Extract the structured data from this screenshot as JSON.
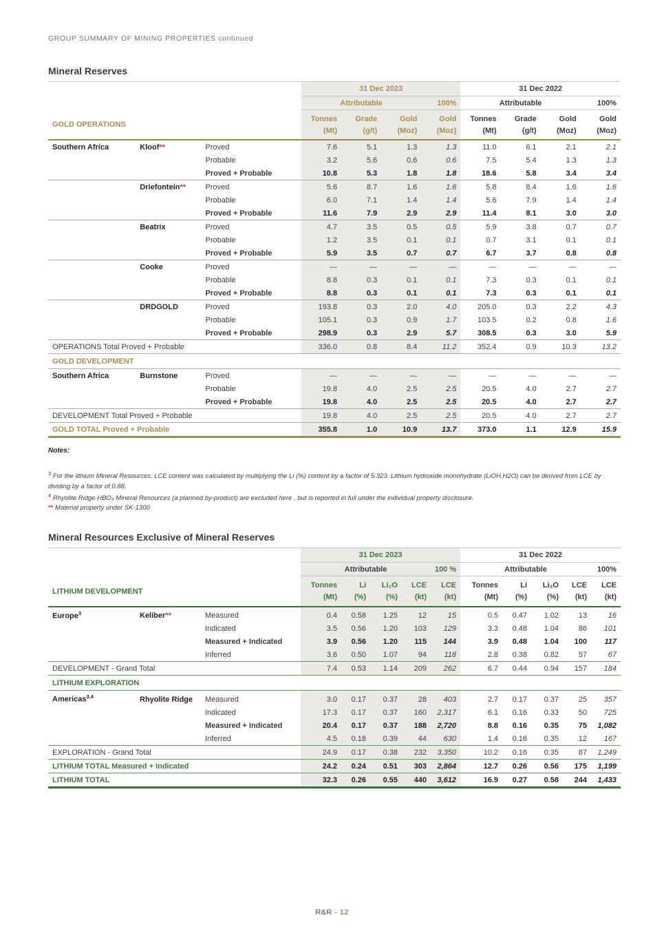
{
  "page": {
    "top_header": "GROUP SUMMARY OF MINING PROPERTIES continued",
    "footer_prefix": "R&R -",
    "footer_page": "12"
  },
  "colors": {
    "gold": "#a6904e",
    "green": "#41773d",
    "red": "#c23b34"
  },
  "reserves": {
    "title": "Mineral Reserves",
    "group_label": "GOLD OPERATIONS",
    "period_2023": "31 Dec 2023",
    "period_2022": "31 Dec 2022",
    "attr_2023": "Attributable",
    "attr_2022": "Attributable",
    "pct_2023": "100%",
    "pct_2022": "100%",
    "cols": [
      {
        "a": "Tonnes",
        "b": "(Mt)"
      },
      {
        "a": "Grade",
        "b": "(g/t)"
      },
      {
        "a": "Gold",
        "b": "(Moz)"
      },
      {
        "a": "Gold",
        "b": "(Moz)"
      },
      {
        "a": "Tonnes",
        "b": "(Mt)"
      },
      {
        "a": "Grade",
        "b": "(g/t)"
      },
      {
        "a": "Gold",
        "b": "(Moz)"
      },
      {
        "a": "Gold",
        "b": "(Moz)"
      }
    ],
    "rows": [
      {
        "t": "d",
        "region": "Southern Africa",
        "prop": "Kloof",
        "mark": "**",
        "cat": "Proved",
        "v": [
          "7.6",
          "5.1",
          "1.3",
          "1.3",
          "11.0",
          "6.1",
          "2.1",
          "2.1"
        ]
      },
      {
        "t": "d",
        "cat": "Probable",
        "v": [
          "3.2",
          "5.6",
          "0.6",
          "0.6",
          "7.5",
          "5.4",
          "1.3",
          "1.3"
        ]
      },
      {
        "t": "s",
        "cat": "Proved + Probable",
        "v": [
          "10.8",
          "5.3",
          "1.8",
          "1.8",
          "18.6",
          "5.8",
          "3.4",
          "3.4"
        ]
      },
      {
        "t": "d",
        "prop": "Driefontein",
        "mark": "**",
        "cat": "Proved",
        "sep": true,
        "v": [
          "5.6",
          "8.7",
          "1.6",
          "1.6",
          "5.8",
          "8.4",
          "1.6",
          "1.6"
        ]
      },
      {
        "t": "d",
        "cat": "Probable",
        "v": [
          "6.0",
          "7.1",
          "1.4",
          "1.4",
          "5.6",
          "7.9",
          "1.4",
          "1.4"
        ]
      },
      {
        "t": "s",
        "cat": "Proved + Probable",
        "v": [
          "11.6",
          "7.9",
          "2.9",
          "2.9",
          "11.4",
          "8.1",
          "3.0",
          "3.0"
        ]
      },
      {
        "t": "d",
        "prop": "Beatrix",
        "cat": "Proved",
        "sep": true,
        "v": [
          "4.7",
          "3.5",
          "0.5",
          "0.5",
          "5.9",
          "3.8",
          "0.7",
          "0.7"
        ]
      },
      {
        "t": "d",
        "cat": "Probable",
        "v": [
          "1.2",
          "3.5",
          "0.1",
          "0.1",
          "0.7",
          "3.1",
          "0.1",
          "0.1"
        ]
      },
      {
        "t": "s",
        "cat": "Proved + Probable",
        "v": [
          "5.9",
          "3.5",
          "0.7",
          "0.7",
          "6.7",
          "3.7",
          "0.8",
          "0.8"
        ]
      },
      {
        "t": "d",
        "prop": "Cooke",
        "cat": "Proved",
        "sep": true,
        "v": [
          "—",
          "—",
          "—",
          "—",
          "—",
          "—",
          "—",
          "—"
        ]
      },
      {
        "t": "d",
        "cat": "Probable",
        "v": [
          "8.8",
          "0.3",
          "0.1",
          "0.1",
          "7.3",
          "0.3",
          "0.1",
          "0.1"
        ]
      },
      {
        "t": "s",
        "cat": "Proved + Probable",
        "v": [
          "8.8",
          "0.3",
          "0.1",
          "0.1",
          "7.3",
          "0.3",
          "0.1",
          "0.1"
        ]
      },
      {
        "t": "d",
        "prop": "DRDGOLD",
        "cat": "Proved",
        "sep": true,
        "v": [
          "193.8",
          "0.3",
          "2.0",
          "4.0",
          "205.0",
          "0.3",
          "2.2",
          "4.3"
        ]
      },
      {
        "t": "d",
        "cat": "Probable",
        "v": [
          "105.1",
          "0.3",
          "0.9",
          "1.7",
          "103.5",
          "0.2",
          "0.8",
          "1.6"
        ]
      },
      {
        "t": "s",
        "cat": "Proved + Probable",
        "v": [
          "298.9",
          "0.3",
          "2.9",
          "5.7",
          "308.5",
          "0.3",
          "3.0",
          "5.9"
        ]
      },
      {
        "t": "total",
        "label": "OPERATIONS Total Proved + Probable",
        "sep": true,
        "v": [
          "336.0",
          "0.8",
          "8.4",
          "11.2",
          "352.4",
          "0.9",
          "10.3",
          "13.2"
        ]
      },
      {
        "t": "section",
        "label": "GOLD DEVELOPMENT"
      },
      {
        "t": "d",
        "region": "Southern Africa",
        "prop": "Burnstone",
        "cat": "Proved",
        "v": [
          "—",
          "—",
          "—",
          "—",
          "—",
          "—",
          "—",
          "—"
        ]
      },
      {
        "t": "d",
        "cat": "Probable",
        "v": [
          "19.8",
          "4.0",
          "2.5",
          "2.5",
          "20.5",
          "4.0",
          "2.7",
          "2.7"
        ]
      },
      {
        "t": "s",
        "cat": "Proved + Probable",
        "v": [
          "19.8",
          "4.0",
          "2.5",
          "2.5",
          "20.5",
          "4.0",
          "2.7",
          "2.7"
        ]
      },
      {
        "t": "total",
        "label": "DEVELOPMENT Total Proved + Probable",
        "sep": true,
        "v": [
          "19.8",
          "4.0",
          "2.5",
          "2.5",
          "20.5",
          "4.0",
          "2.7",
          "2.7"
        ]
      },
      {
        "t": "grand",
        "label": "GOLD TOTAL  Proved + Probable",
        "v": [
          "355.8",
          "1.0",
          "10.9",
          "13.7",
          "373.0",
          "1.1",
          "12.9",
          "15.9"
        ]
      }
    ]
  },
  "notes": {
    "title": "Notes:",
    "items": [
      {
        "sup": "3",
        "text": "For the lithium Mineral Resources, LCE content was calculated by multiplying the Li (%) content by a factor of 5.323. Lithium hydroxide monohydrate (LiOH.H2O) can be derived from LCE by dividing by a factor of 0.88."
      },
      {
        "sup": "4",
        "text": "Rhyolite Ridge HBO₃ Mineral Resources (a planned by-product) are excluded here , but is  reported in full under the individual property disclosure."
      },
      {
        "mark": "**",
        "text": "Material property under SK-1300"
      }
    ]
  },
  "resources": {
    "title": "Mineral Resources Exclusive of Mineral Reserves",
    "group_label": "LITHIUM DEVELOPMENT",
    "period_2023": "31 Dec 2023",
    "period_2022": "31 Dec 2022",
    "attr_2023": "Attributable",
    "attr_2022": "Attributable",
    "pct_2023": "100 %",
    "pct_2022": "100%",
    "cols": [
      {
        "a": "Tonnes",
        "b": "(Mt)"
      },
      {
        "a": "Li",
        "b": "(%)"
      },
      {
        "a": "Li₂O",
        "b": "(%)"
      },
      {
        "a": "LCE",
        "b": "(kt)"
      },
      {
        "a": "LCE",
        "b": "(kt)"
      },
      {
        "a": "Tonnes",
        "b": "(Mt)"
      },
      {
        "a": "Li",
        "b": "(%)"
      },
      {
        "a": "Li₂O",
        "b": "(%)"
      },
      {
        "a": "LCE",
        "b": "(kt)"
      },
      {
        "a": "LCE",
        "b": "(kt)"
      }
    ],
    "rows": [
      {
        "t": "d",
        "region": "Europe",
        "region_sup": "3",
        "prop": "Keliber",
        "mark": "**",
        "cat": "Measured",
        "v": [
          "0.4",
          "0.58",
          "1.25",
          "12",
          "15",
          "0.5",
          "0.47",
          "1.02",
          "13",
          "16"
        ]
      },
      {
        "t": "d",
        "cat": "Indicated",
        "v": [
          "3.5",
          "0.56",
          "1.20",
          "103",
          "129",
          "3.3",
          "0.48",
          "1.04",
          "86",
          "101"
        ]
      },
      {
        "t": "s",
        "cat": "Measured + Indicated",
        "v": [
          "3.9",
          "0.56",
          "1.20",
          "115",
          "144",
          "3.9",
          "0.48",
          "1.04",
          "100",
          "117"
        ]
      },
      {
        "t": "d",
        "cat": "Inferred",
        "v": [
          "3.6",
          "0.50",
          "1.07",
          "94",
          "118",
          "2.8",
          "0.38",
          "0.82",
          "57",
          "67"
        ]
      },
      {
        "t": "total",
        "label": "DEVELOPMENT - Grand Total",
        "sep": true,
        "v": [
          "7.4",
          "0.53",
          "1.14",
          "209",
          "262",
          "6.7",
          "0.44",
          "0.94",
          "157",
          "184"
        ]
      },
      {
        "t": "section",
        "label": "LITHIUM EXPLORATION"
      },
      {
        "t": "d",
        "region": "Americas",
        "region_sup": "3,4",
        "prop": "Rhyolite Ridge",
        "cat": "Measured",
        "v": [
          "3.0",
          "0.17",
          "0.37",
          "28",
          "403",
          "2.7",
          "0.17",
          "0.37",
          "25",
          "357"
        ]
      },
      {
        "t": "d",
        "cat": "Indicated",
        "v": [
          "17.3",
          "0.17",
          "0.37",
          "160",
          "2,317",
          "6.1",
          "0.16",
          "0.33",
          "50",
          "725"
        ]
      },
      {
        "t": "s",
        "cat": "Measured + Indicated",
        "v": [
          "20.4",
          "0.17",
          "0.37",
          "188",
          "2,720",
          "8.8",
          "0.16",
          "0.35",
          "75",
          "1,082"
        ]
      },
      {
        "t": "d",
        "cat": "Inferred",
        "v": [
          "4.5",
          "0.18",
          "0.39",
          "44",
          "630",
          "1.4",
          "0.16",
          "0.35",
          "12",
          "167"
        ]
      },
      {
        "t": "total",
        "label": "EXPLORATION - Grand Total",
        "sep": true,
        "v": [
          "24.9",
          "0.17",
          "0.38",
          "232",
          "3,350",
          "10.2",
          "0.16",
          "0.35",
          "87",
          "1,249"
        ]
      },
      {
        "t": "grand",
        "label": "LITHIUM TOTAL Measured + Indicated",
        "v": [
          "24.2",
          "0.24",
          "0.51",
          "303",
          "2,864",
          "12.7",
          "0.26",
          "0.56",
          "175",
          "1,199"
        ]
      },
      {
        "t": "grand",
        "label": "LITHIUM TOTAL",
        "v": [
          "32.3",
          "0.26",
          "0.55",
          "440",
          "3,612",
          "16.9",
          "0.27",
          "0.58",
          "244",
          "1,433"
        ]
      }
    ]
  }
}
